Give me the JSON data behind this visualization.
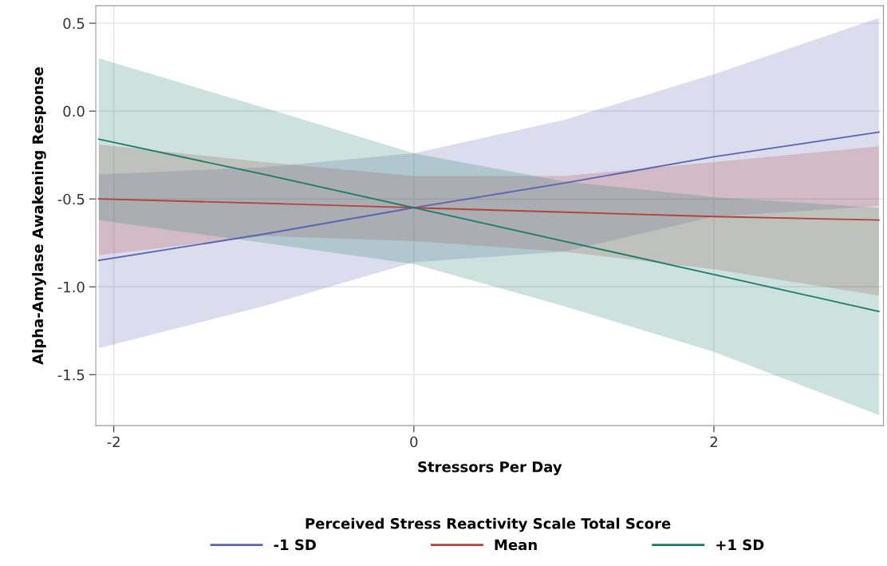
{
  "chart_data": {
    "type": "line",
    "xlabel": "Stressors Per Day",
    "ylabel": "Alpha-Amylase Awakening Response",
    "legend_title": "Perceived Stress Reactivity Scale Total Score",
    "x": [
      -2.1,
      -1,
      0,
      1,
      2,
      3.1
    ],
    "series": [
      {
        "name": "-1 SD",
        "color": "#5a63b3",
        "values": [
          -0.85,
          -0.7,
          -0.55,
          -0.41,
          -0.26,
          -0.12
        ],
        "lower": [
          -1.35,
          -1.11,
          -0.86,
          -0.8,
          -0.6,
          -0.54
        ],
        "upper": [
          -0.36,
          -0.32,
          -0.24,
          -0.05,
          0.21,
          0.53
        ]
      },
      {
        "name": "Mean",
        "color": "#b2433c",
        "values": [
          -0.5,
          -0.525,
          -0.55,
          -0.575,
          -0.6,
          -0.62
        ],
        "lower": [
          -0.82,
          -0.71,
          -0.74,
          -0.8,
          -0.9,
          -1.05
        ],
        "upper": [
          -0.19,
          -0.29,
          -0.37,
          -0.37,
          -0.29,
          -0.2
        ]
      },
      {
        "name": "+1 SD",
        "color": "#1b7b68",
        "values": [
          -0.16,
          -0.36,
          -0.55,
          -0.74,
          -0.93,
          -1.14
        ],
        "lower": [
          -0.62,
          -0.75,
          -0.87,
          -1.11,
          -1.37,
          -1.73
        ],
        "upper": [
          0.3,
          0.02,
          -0.24,
          -0.4,
          -0.49,
          -0.55
        ]
      }
    ],
    "xlim": [
      -2.12,
      3.13
    ],
    "ylim": [
      -1.79,
      0.6
    ],
    "xticks": [
      -2,
      0,
      2
    ],
    "yticks": [
      {
        "value": 0.5,
        "label": "0.5"
      },
      {
        "value": 0,
        "label": "0.0"
      },
      {
        "value": -0.5,
        "label": "-0.5"
      },
      {
        "value": -1,
        "label": "-1.0"
      },
      {
        "value": -1.5,
        "label": "-1.5"
      }
    ],
    "grid": true,
    "legend": "bottom",
    "line_style": "solid",
    "marker": "none"
  }
}
